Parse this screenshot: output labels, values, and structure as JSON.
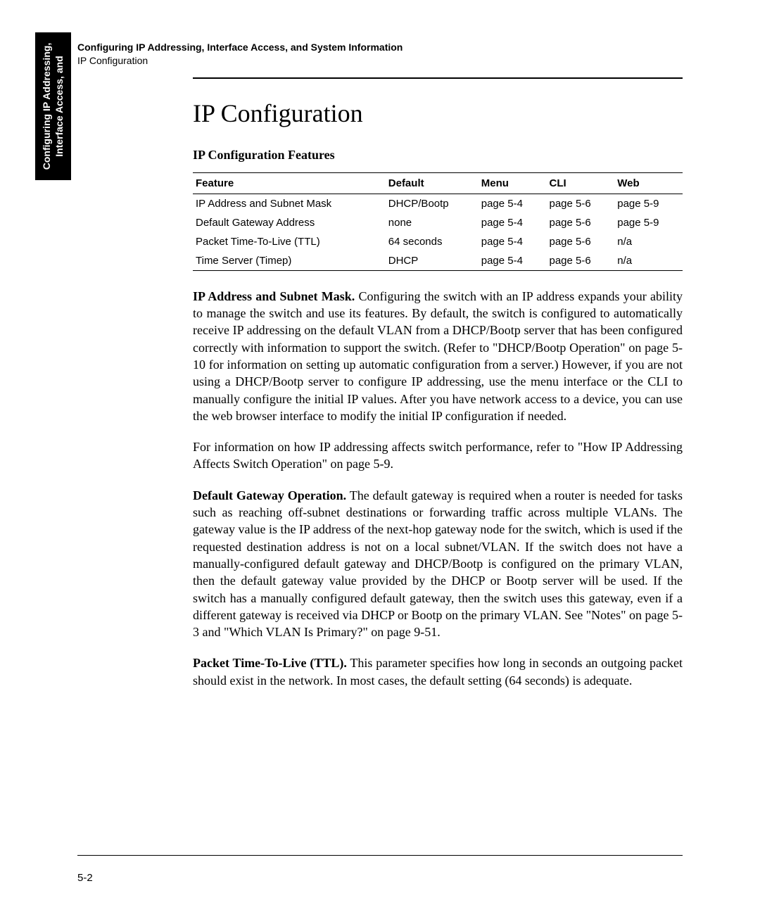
{
  "running_head": {
    "title": "Configuring IP Addressing, Interface Access, and System Information",
    "subtitle": "IP Configuration"
  },
  "side_tab": {
    "line1": "Configuring IP Addressing,",
    "line2": "Interface Access, and"
  },
  "heading": "IP Configuration",
  "table_caption": "IP Configuration Features",
  "table": {
    "columns": [
      "Feature",
      "Default",
      "Menu",
      "CLI",
      "Web"
    ],
    "col_widths": [
      "36%",
      "16%",
      "16%",
      "16%",
      "16%"
    ],
    "rows": [
      [
        "IP Address and Subnet Mask",
        "DHCP/Bootp",
        "page 5-4",
        "page 5-6",
        "page 5-9"
      ],
      [
        "Default Gateway Address",
        "none",
        "page 5-4",
        "page 5-6",
        "page 5-9"
      ],
      [
        "Packet Time-To-Live (TTL)",
        "64 seconds",
        "page 5-4",
        "page 5-6",
        "n/a"
      ],
      [
        "Time Server (Timep)",
        "DHCP",
        "page 5-4",
        "page 5-6",
        "n/a"
      ]
    ]
  },
  "paragraphs": [
    {
      "run_in": "IP Address and Subnet Mask.",
      "text": "  Configuring the switch with an IP address expands your ability to manage the switch and use its features. By default, the switch is configured to automatically receive IP addressing on the default VLAN from a DHCP/Bootp server that has been configured correctly with information to support the switch. (Refer to \"DHCP/Bootp Operation\" on page 5-10 for information on setting up automatic configuration from a server.) However, if you are not using a DHCP/Bootp server to configure IP addressing, use the menu interface or the CLI to manually configure the initial IP values. After you have network access to a device, you can use the web browser interface to modify the initial IP configuration if needed."
    },
    {
      "run_in": "",
      "text": "For information on how IP addressing affects switch performance, refer to \"How IP Addressing Affects Switch Operation\" on page 5-9."
    },
    {
      "run_in": "Default Gateway Operation.",
      "text": "  The default gateway is required when a router is needed for tasks such as  reaching off-subnet destinations or forwarding traffic across multiple VLANs. The gateway value is the IP address of the next-hop gateway node for the switch, which is used if the requested destination address is not on a local subnet/VLAN. If the switch does not have a manually-configured default gateway and DHCP/Bootp is configured on the primary VLAN, then the default gateway value provided by the DHCP or Bootp server will be used. If the switch has a manually configured default gateway, then the switch uses this gateway, even if a different gateway is received via DHCP or Bootp on the primary VLAN. See \"Notes\" on page 5-3 and \"Which VLAN Is Primary?\" on page 9-51."
    },
    {
      "run_in": "Packet Time-To-Live (TTL).",
      "text": "  This parameter specifies how long in seconds an outgoing packet should exist in the network. In most cases, the default setting (64 seconds) is adequate."
    }
  ],
  "page_number": "5-2",
  "colors": {
    "text": "#000000",
    "background": "#ffffff",
    "tab_bg": "#000000",
    "tab_text": "#ffffff"
  },
  "fonts": {
    "serif": "Times New Roman",
    "sans": "Arial"
  }
}
